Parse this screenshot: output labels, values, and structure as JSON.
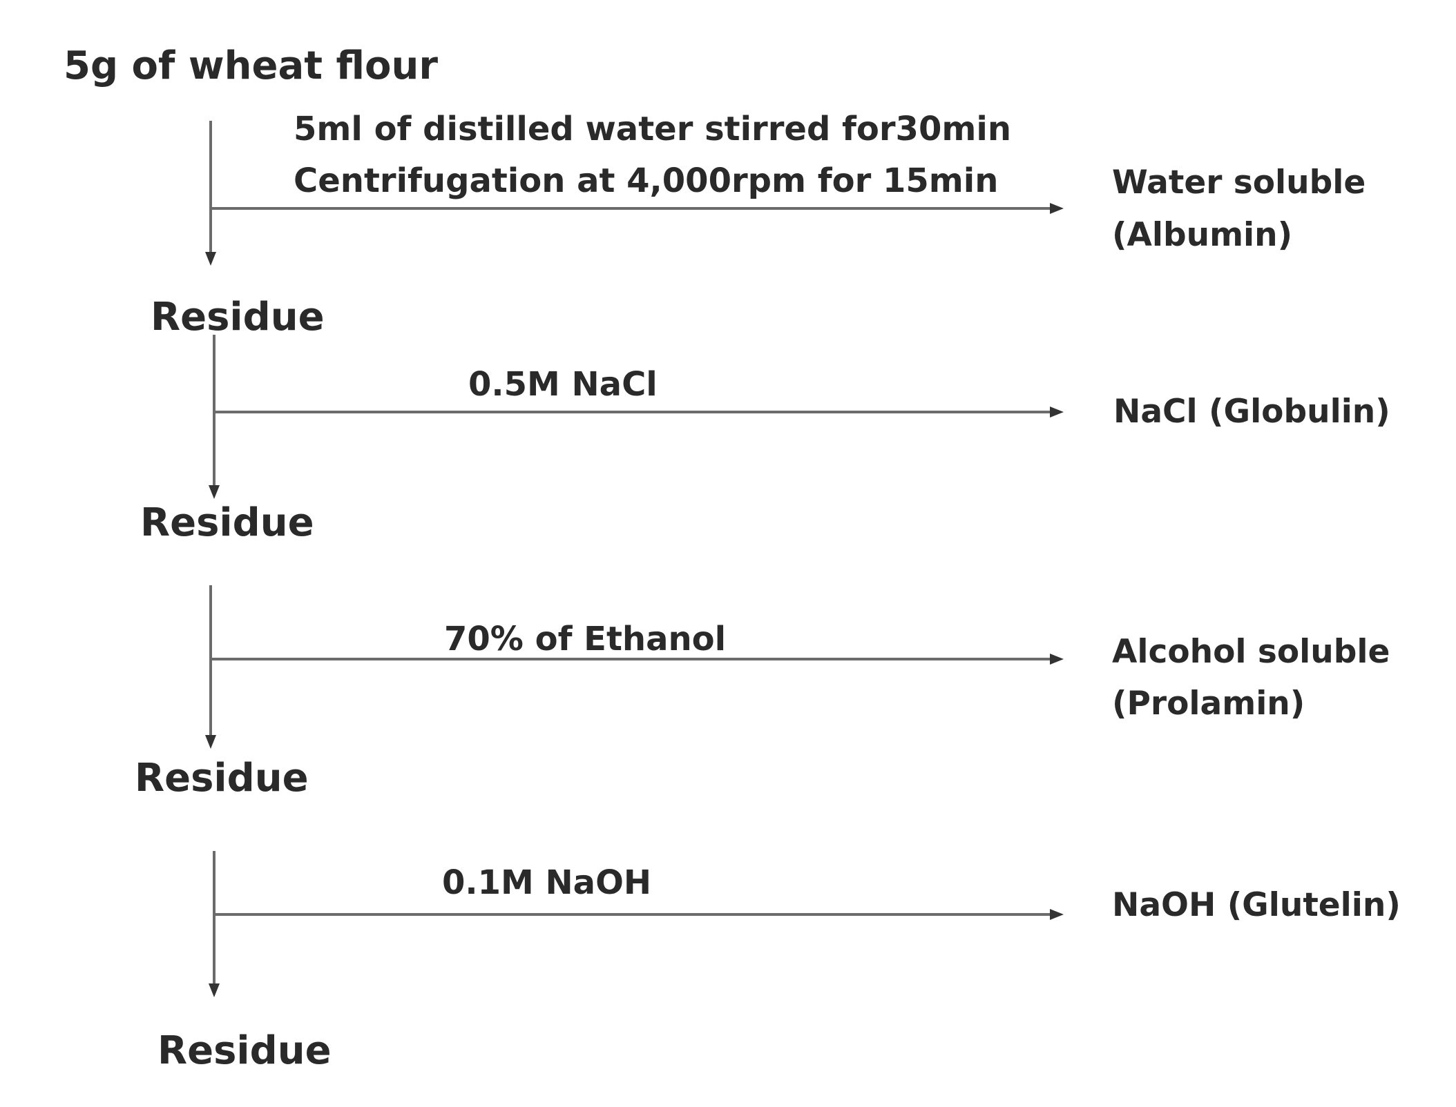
{
  "start": "5g of wheat flour",
  "steps": [
    {
      "conditions": [
        "5ml of distilled water stirred for30min",
        "Centrifugation at 4,000rpm for 15min"
      ],
      "product": [
        "Water soluble",
        "(Albumin)"
      ],
      "residue": "Residue"
    },
    {
      "conditions": [
        "0.5M NaCl"
      ],
      "product": [
        "NaCl (Globulin)"
      ],
      "residue": "Residue"
    },
    {
      "conditions": [
        "70% of Ethanol"
      ],
      "product": [
        "Alcohol soluble",
        "(Prolamin)"
      ],
      "residue": "Residue"
    },
    {
      "conditions": [
        "0.1M NaOH"
      ],
      "product": [
        "NaOH (Glutelin)"
      ],
      "residue": "Residue"
    }
  ],
  "colors": {
    "text": "#2a2a2a",
    "line": "#6b6b6b",
    "background": "#ffffff"
  }
}
